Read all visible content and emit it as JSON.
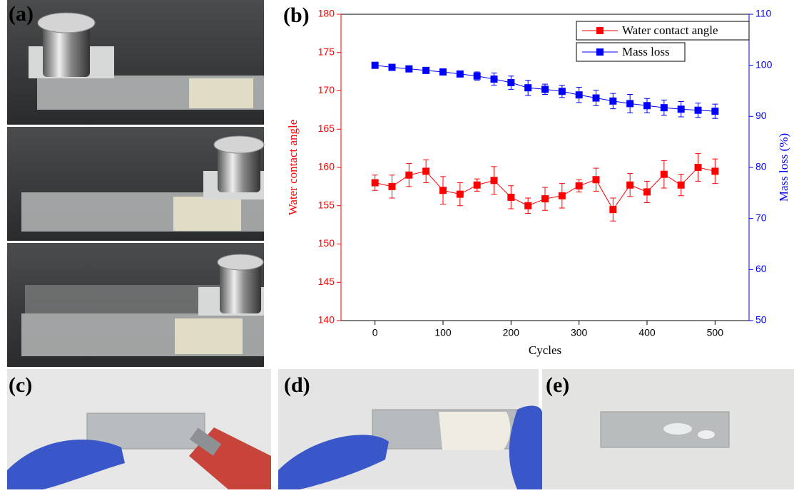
{
  "panel_labels": [
    "(a)",
    "(b)",
    "(c)",
    "(d)",
    "(e)"
  ],
  "chart_data": {
    "type": "line",
    "xlabel": "Cycles",
    "ylabel": "Water contact angle",
    "y2label": "Mass loss (%)",
    "x": [
      0,
      25,
      50,
      75,
      100,
      125,
      150,
      175,
      200,
      225,
      250,
      275,
      300,
      325,
      350,
      375,
      400,
      425,
      450,
      475,
      500
    ],
    "xlim": [
      -50,
      550
    ],
    "xticks": [
      0,
      100,
      200,
      300,
      400,
      500
    ],
    "ylim": [
      140,
      180
    ],
    "yticks": [
      140,
      145,
      150,
      155,
      160,
      165,
      170,
      175,
      180
    ],
    "y2lim": [
      50,
      110
    ],
    "y2ticks": [
      50,
      60,
      70,
      80,
      90,
      100,
      110
    ],
    "legend": "top-right",
    "series": [
      {
        "name": "Water contact angle",
        "color": "#ff0000",
        "axis": "y",
        "values": [
          158,
          157.5,
          159,
          159.5,
          157,
          156.5,
          157.7,
          158.3,
          156.1,
          155,
          155.9,
          156.3,
          157.6,
          158.4,
          154.5,
          157.7,
          156.8,
          159.1,
          157.7,
          160,
          159.5
        ],
        "errors": [
          1,
          1.5,
          1.5,
          1.5,
          1.8,
          1.5,
          0.8,
          1.8,
          1.5,
          1,
          1.5,
          1.6,
          0.8,
          1.5,
          1.5,
          1.5,
          1.4,
          1.8,
          1.4,
          1.8,
          1.6
        ]
      },
      {
        "name": "Mass loss",
        "color": "#0000ff",
        "axis": "y2",
        "values": [
          100,
          99.6,
          99.3,
          99,
          98.7,
          98.3,
          97.9,
          97.3,
          96.6,
          95.6,
          95.3,
          94.9,
          94.2,
          93.6,
          93,
          92.5,
          92.1,
          91.7,
          91.4,
          91.2,
          91
        ],
        "errors": [
          0.3,
          0.3,
          0.3,
          0.4,
          0.4,
          0.5,
          0.8,
          1.2,
          1.3,
          1.5,
          1,
          1.2,
          1.5,
          1.5,
          1.5,
          1.8,
          1.4,
          1.5,
          1.5,
          1.4,
          1.4
        ]
      }
    ]
  }
}
